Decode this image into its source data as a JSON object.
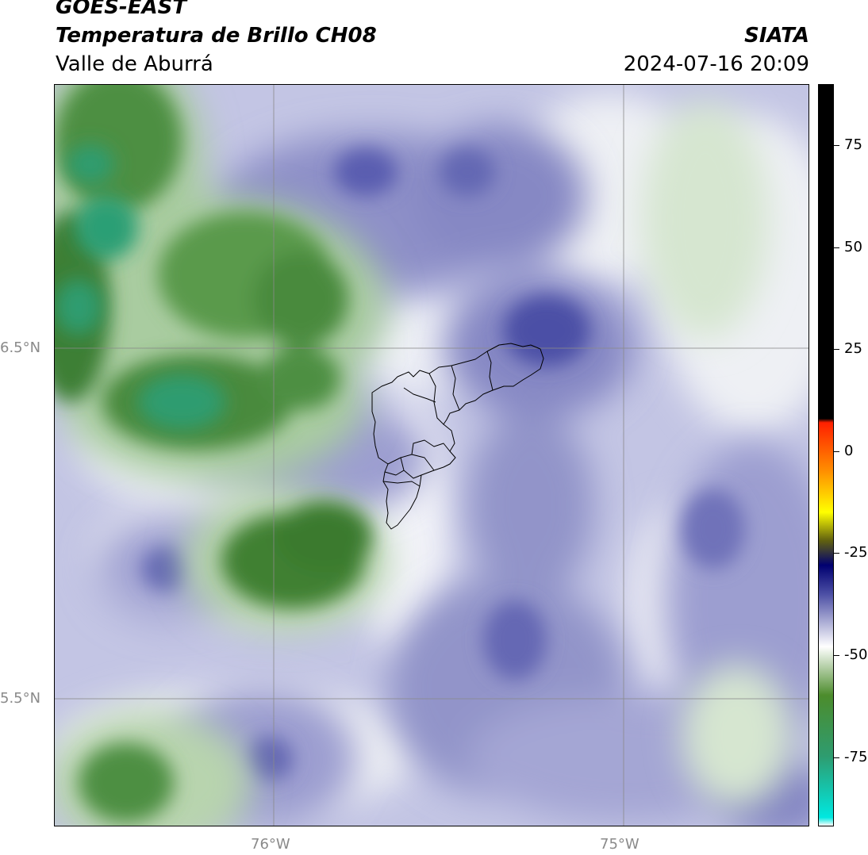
{
  "header": {
    "satellite": "GOES-EAST",
    "product": "Temperatura de Brillo CH08",
    "region": "Valle de Aburrá",
    "agency": "SIATA",
    "datetime": "2024-07-16 20:09"
  },
  "map": {
    "lat_labels": [
      "6.5°N",
      "5.5°N"
    ],
    "lon_labels": [
      "76°W",
      "75°W"
    ],
    "colors": {
      "deep_blue": "#3f4298",
      "mid_blue": "#7a7cbf",
      "light_blue": "#b3b5dc",
      "pale": "#eef0f6",
      "dark_green": "#3e7f34",
      "mid_green": "#6aa55c",
      "light_green": "#c8dcc0",
      "teal": "#27a680",
      "gridline": "#8a8a8a",
      "boundary": "#000000"
    }
  },
  "colorbar": {
    "ticks": [
      "75",
      "50",
      "25",
      "0",
      "-25",
      "-50",
      "-75"
    ],
    "stops": [
      {
        "value": 90,
        "color": "#000000"
      },
      {
        "value": 8,
        "color": "#000000"
      },
      {
        "value": 7,
        "color": "#ff2000"
      },
      {
        "value": -5,
        "color": "#ff9000"
      },
      {
        "value": -15,
        "color": "#ffff00"
      },
      {
        "value": -22,
        "color": "#606010"
      },
      {
        "value": -28,
        "color": "#000070"
      },
      {
        "value": -35,
        "color": "#4b4ea4"
      },
      {
        "value": -48,
        "color": "#ffffff"
      },
      {
        "value": -60,
        "color": "#4c8c2c"
      },
      {
        "value": -75,
        "color": "#2e9c70"
      },
      {
        "value": -90,
        "color": "#00e8e0"
      },
      {
        "value": -92,
        "color": "#ffffff"
      }
    ]
  }
}
